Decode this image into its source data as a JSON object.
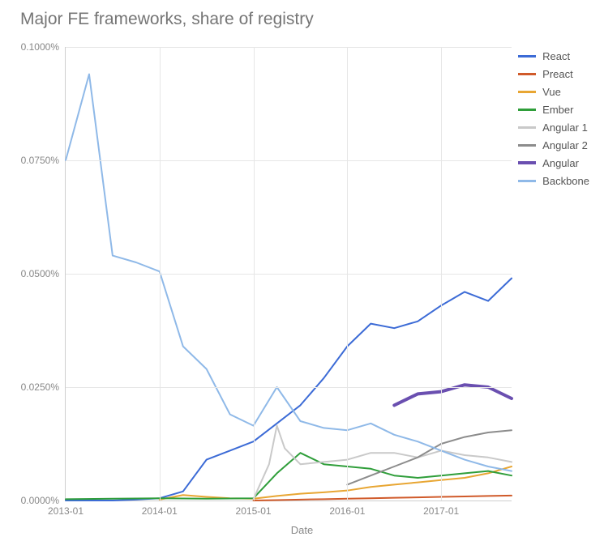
{
  "chart": {
    "type": "line",
    "title": "Major FE frameworks, share of registry",
    "title_color": "#757575",
    "title_fontsize": 21,
    "background_color": "#ffffff",
    "grid_color": "#e6e6e6",
    "axis_color": "#cfcfcf",
    "tick_fontsize": 12,
    "tick_color": "#888888",
    "xlabel": "Date",
    "x_tick_labels": [
      "2013-01",
      "2014-01",
      "2015-01",
      "2016-01",
      "2017-01"
    ],
    "x_tick_positions": [
      0,
      12,
      24,
      36,
      48
    ],
    "x_range": [
      0,
      57
    ],
    "y_tick_labels": [
      "0.0000%",
      "0.0250%",
      "0.0500%",
      "0.0750%",
      "0.1000%"
    ],
    "y_tick_values": [
      0,
      0.025,
      0.05,
      0.075,
      0.1
    ],
    "y_range": [
      0,
      0.1
    ],
    "legend_fontsize": 13,
    "legend_color": "#555555",
    "series": [
      {
        "name": "React",
        "color": "#3c6bd6",
        "width": 2,
        "data": [
          [
            0,
            0
          ],
          [
            3,
            0
          ],
          [
            6,
            0
          ],
          [
            9,
            0.0002
          ],
          [
            12,
            0.0005
          ],
          [
            15,
            0.002
          ],
          [
            18,
            0.009
          ],
          [
            21,
            0.011
          ],
          [
            24,
            0.013
          ],
          [
            27,
            0.017
          ],
          [
            30,
            0.021
          ],
          [
            33,
            0.027
          ],
          [
            36,
            0.034
          ],
          [
            39,
            0.039
          ],
          [
            42,
            0.038
          ],
          [
            45,
            0.0395
          ],
          [
            48,
            0.043
          ],
          [
            51,
            0.046
          ],
          [
            54,
            0.044
          ],
          [
            57,
            0.049
          ]
        ]
      },
      {
        "name": "Preact",
        "color": "#d05a2a",
        "width": 2,
        "data": [
          [
            24,
            0
          ],
          [
            27,
            0.0001
          ],
          [
            30,
            0.0002
          ],
          [
            33,
            0.0003
          ],
          [
            36,
            0.0004
          ],
          [
            39,
            0.0005
          ],
          [
            42,
            0.0006
          ],
          [
            45,
            0.0007
          ],
          [
            48,
            0.0008
          ],
          [
            51,
            0.0009
          ],
          [
            54,
            0.001
          ],
          [
            57,
            0.0011
          ]
        ]
      },
      {
        "name": "Vue",
        "color": "#e8a633",
        "width": 2,
        "data": [
          [
            12,
            0.0002
          ],
          [
            15,
            0.0012
          ],
          [
            18,
            0.0008
          ],
          [
            21,
            0.0005
          ],
          [
            24,
            0.0004
          ],
          [
            27,
            0.001
          ],
          [
            30,
            0.0015
          ],
          [
            33,
            0.0018
          ],
          [
            36,
            0.0022
          ],
          [
            39,
            0.003
          ],
          [
            42,
            0.0035
          ],
          [
            45,
            0.004
          ],
          [
            48,
            0.0045
          ],
          [
            51,
            0.005
          ],
          [
            54,
            0.006
          ],
          [
            57,
            0.0075
          ]
        ]
      },
      {
        "name": "Ember",
        "color": "#2f9e3a",
        "width": 2,
        "data": [
          [
            0,
            0.0003
          ],
          [
            6,
            0.0004
          ],
          [
            12,
            0.0005
          ],
          [
            18,
            0.0004
          ],
          [
            24,
            0.0005
          ],
          [
            27,
            0.006
          ],
          [
            30,
            0.0105
          ],
          [
            33,
            0.008
          ],
          [
            36,
            0.0075
          ],
          [
            39,
            0.007
          ],
          [
            42,
            0.0055
          ],
          [
            45,
            0.005
          ],
          [
            48,
            0.0055
          ],
          [
            51,
            0.006
          ],
          [
            54,
            0.0065
          ],
          [
            57,
            0.0055
          ]
        ]
      },
      {
        "name": "Angular 1",
        "color": "#c9c9c9",
        "width": 2,
        "data": [
          [
            24,
            0.0003
          ],
          [
            26,
            0.008
          ],
          [
            27,
            0.0165
          ],
          [
            28,
            0.0115
          ],
          [
            30,
            0.008
          ],
          [
            33,
            0.0085
          ],
          [
            36,
            0.009
          ],
          [
            39,
            0.0105
          ],
          [
            42,
            0.0105
          ],
          [
            45,
            0.0095
          ],
          [
            48,
            0.011
          ],
          [
            51,
            0.01
          ],
          [
            54,
            0.0095
          ],
          [
            57,
            0.0085
          ]
        ]
      },
      {
        "name": "Angular 2",
        "color": "#8c8c8c",
        "width": 2,
        "data": [
          [
            36,
            0.0035
          ],
          [
            39,
            0.0055
          ],
          [
            42,
            0.0075
          ],
          [
            45,
            0.0095
          ],
          [
            48,
            0.0125
          ],
          [
            51,
            0.014
          ],
          [
            54,
            0.015
          ],
          [
            57,
            0.0155
          ]
        ]
      },
      {
        "name": "Angular",
        "color": "#6a4fb0",
        "width": 4,
        "data": [
          [
            42,
            0.021
          ],
          [
            45,
            0.0235
          ],
          [
            48,
            0.024
          ],
          [
            51,
            0.0255
          ],
          [
            54,
            0.025
          ],
          [
            57,
            0.0225
          ]
        ]
      },
      {
        "name": "Backbone",
        "color": "#8fb9e8",
        "width": 2,
        "data": [
          [
            0,
            0.075
          ],
          [
            3,
            0.094
          ],
          [
            6,
            0.054
          ],
          [
            9,
            0.0525
          ],
          [
            12,
            0.0505
          ],
          [
            15,
            0.034
          ],
          [
            18,
            0.029
          ],
          [
            21,
            0.019
          ],
          [
            24,
            0.0165
          ],
          [
            27,
            0.025
          ],
          [
            30,
            0.0175
          ],
          [
            33,
            0.016
          ],
          [
            36,
            0.0155
          ],
          [
            39,
            0.017
          ],
          [
            42,
            0.0145
          ],
          [
            45,
            0.013
          ],
          [
            48,
            0.011
          ],
          [
            51,
            0.009
          ],
          [
            54,
            0.0075
          ],
          [
            57,
            0.0065
          ]
        ]
      }
    ]
  }
}
